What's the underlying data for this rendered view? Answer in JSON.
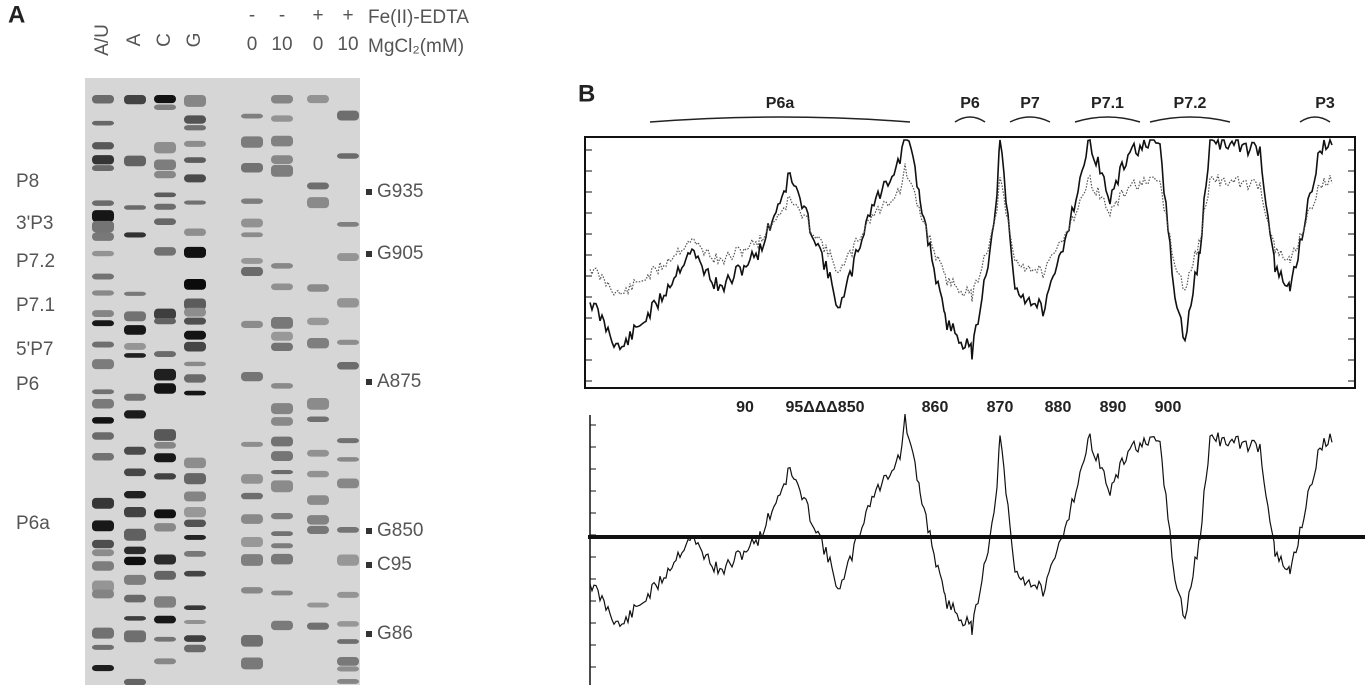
{
  "panel_a": {
    "label": "A",
    "lane_labels": [
      "A/U",
      "A",
      "C",
      "G",
      "0",
      "10",
      "0",
      "10"
    ],
    "fe_edta_signs": [
      "-",
      "-",
      "+",
      "+"
    ],
    "fe_edta_label": "Fe(II)-EDTA",
    "mgcl2_label": "MgCl₂(mM)",
    "left_labels": [
      "P8",
      "3'P3",
      "P7.2",
      "P7.1",
      "5'P7",
      "P6",
      "P6a"
    ],
    "right_labels": [
      "G935",
      "G905",
      "A875",
      "G850",
      "C95",
      "G86"
    ]
  },
  "panel_b": {
    "label": "B",
    "domains": [
      "P6a",
      "P6",
      "P7",
      "P7.1",
      "P7.2",
      "P3"
    ],
    "positions": [
      "90",
      "95ΔΔΔ850",
      "860",
      "870",
      "880",
      "890",
      "900"
    ]
  }
}
